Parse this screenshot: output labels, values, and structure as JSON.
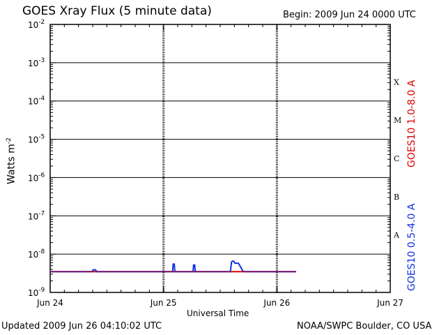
{
  "header": {
    "title": "GOES Xray Flux (5 minute data)",
    "begin": "Begin:  2009 Jun 24 0000 UTC"
  },
  "footer": {
    "updated": "Updated 2009 Jun 26 04:10:02 UTC",
    "credit": "NOAA/SWPC Boulder, CO USA"
  },
  "chart_data": {
    "type": "line",
    "title": "GOES Xray Flux (5 minute data)",
    "xlabel": "Universal Time",
    "ylabel": "Watts m",
    "ylabel_sup": "-2",
    "y_scale": "log",
    "ylim": [
      1e-09,
      0.01
    ],
    "xlim_days": [
      0,
      3
    ],
    "grid": true,
    "x_ticks": [
      {
        "day": 0,
        "label": "Jun 24"
      },
      {
        "day": 1,
        "label": "Jun 25"
      },
      {
        "day": 2,
        "label": "Jun 26"
      },
      {
        "day": 3,
        "label": "Jun 27"
      }
    ],
    "y_ticks": [
      {
        "base": "10",
        "exp": "-2"
      },
      {
        "base": "10",
        "exp": "-3"
      },
      {
        "base": "10",
        "exp": "-4"
      },
      {
        "base": "10",
        "exp": "-5"
      },
      {
        "base": "10",
        "exp": "-6"
      },
      {
        "base": "10",
        "exp": "-7"
      },
      {
        "base": "10",
        "exp": "-8"
      },
      {
        "base": "10",
        "exp": "-9"
      }
    ],
    "flare_classes": [
      {
        "label": "X",
        "exp": -3.5
      },
      {
        "label": "M",
        "exp": -4.5
      },
      {
        "label": "C",
        "exp": -5.5
      },
      {
        "label": "B",
        "exp": -6.5
      },
      {
        "label": "A",
        "exp": -7.5
      }
    ],
    "series": [
      {
        "name": "GOES10 1.0-8.0 A",
        "color": "#dd0000",
        "points": [
          [
            0.0,
            3.5e-09
          ],
          [
            2.17,
            3.5e-09
          ]
        ]
      },
      {
        "name": "GOES10 0.5-4.0 A",
        "color": "#1030e0",
        "points": [
          [
            0.0,
            3.5e-09
          ],
          [
            0.37,
            3.5e-09
          ],
          [
            0.38,
            3.9e-09
          ],
          [
            0.4,
            3.9e-09
          ],
          [
            0.41,
            3.5e-09
          ],
          [
            1.08,
            3.5e-09
          ],
          [
            1.085,
            5.5e-09
          ],
          [
            1.095,
            5.5e-09
          ],
          [
            1.1,
            3.5e-09
          ],
          [
            1.26,
            3.5e-09
          ],
          [
            1.265,
            5.2e-09
          ],
          [
            1.275,
            5.2e-09
          ],
          [
            1.28,
            3.5e-09
          ],
          [
            1.59,
            3.5e-09
          ],
          [
            1.6,
            6.3e-09
          ],
          [
            1.61,
            6.6e-09
          ],
          [
            1.62,
            6.5e-09
          ],
          [
            1.63,
            5.8e-09
          ],
          [
            1.66,
            5.8e-09
          ],
          [
            1.68,
            4.6e-09
          ],
          [
            1.7,
            3.6e-09
          ],
          [
            1.71,
            3.5e-09
          ],
          [
            2.17,
            3.5e-09
          ]
        ]
      }
    ]
  }
}
